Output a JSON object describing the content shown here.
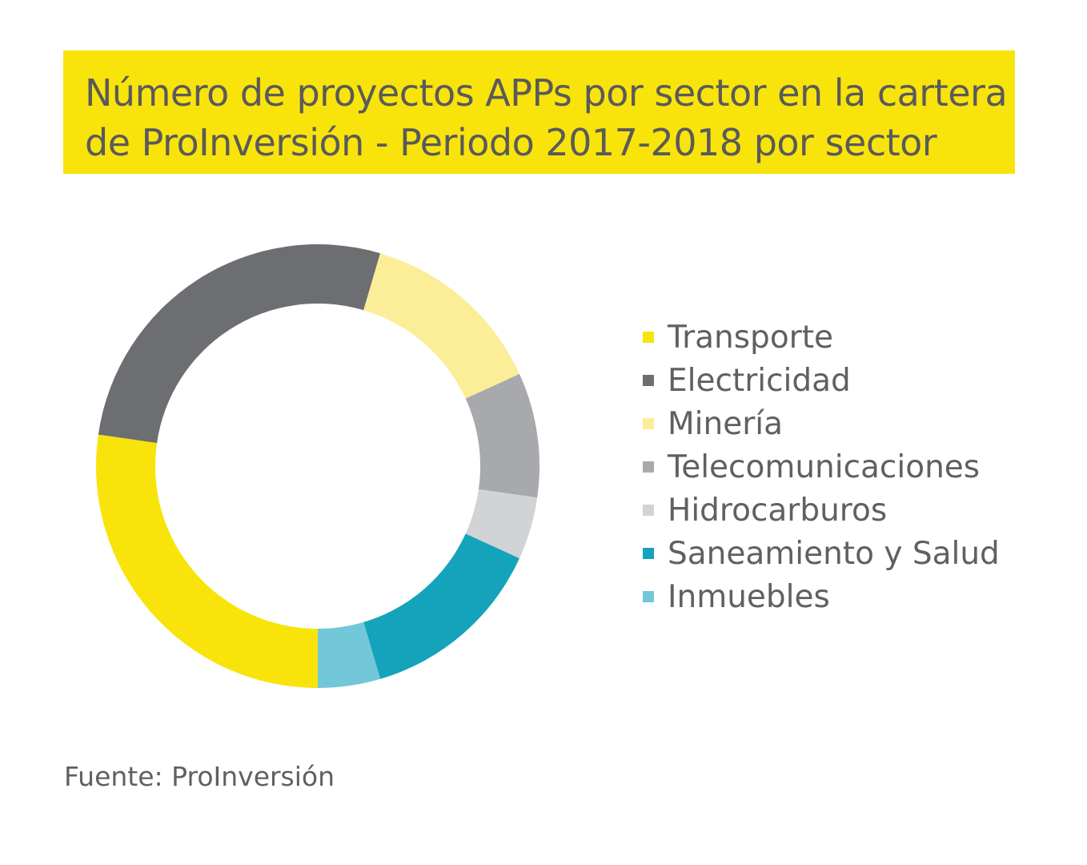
{
  "chart_data": {
    "type": "pie",
    "variant": "donut",
    "title": "Número de proyectos APPs por sector en la cartera de ProInversión - Periodo 2017-2018 por sector",
    "title_lines": [
      "Número de proyectos APPs por sector en la cartera",
      "de ProInversión - Periodo 2017-2018 por sector"
    ],
    "categories": [
      "Transporte",
      "Electricidad",
      "Minería",
      "Telecomunicaciones",
      "Hidrocarburos",
      "Saneamiento y Salud",
      "Inmuebles"
    ],
    "values": [
      6,
      6,
      3,
      2,
      1,
      3,
      1
    ],
    "colors": [
      "#f8e40b",
      "#6d6e71",
      "#fcee98",
      "#a7a9ac",
      "#d1d3d4",
      "#15a3bc",
      "#72c7d8"
    ],
    "legend_position": "right",
    "source": "Fuente: ProInversión",
    "title_background": "#f8e40b"
  }
}
